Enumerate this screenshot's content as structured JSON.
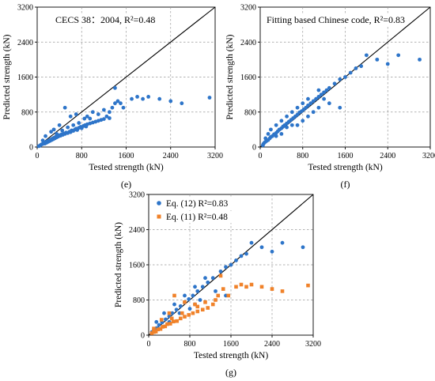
{
  "colors": {
    "blue": "#2e75c9",
    "orange": "#f0822a"
  },
  "chart_data": [
    {
      "type": "scatter",
      "panel_label": "(e)",
      "annotation": "CECS 38：2004, R²=0.48",
      "xlabel": "Tested strength (kN)",
      "ylabel": "Predicted strength (kN)",
      "xlim": [
        0,
        3200
      ],
      "ylim": [
        0,
        3200
      ],
      "xticks": [
        "0",
        "800",
        "1600",
        "2400",
        "3200"
      ],
      "yticks": [
        "0",
        "800",
        "1600",
        "2400",
        "3200"
      ],
      "grid": true,
      "reference_line": "y = x",
      "series": [
        {
          "color": "blue",
          "marker": "circle",
          "points": [
            [
              60,
              45
            ],
            [
              80,
              60
            ],
            [
              100,
              70
            ],
            [
              120,
              90
            ],
            [
              140,
              80
            ],
            [
              150,
              110
            ],
            [
              170,
              100
            ],
            [
              180,
              130
            ],
            [
              200,
              120
            ],
            [
              210,
              150
            ],
            [
              230,
              140
            ],
            [
              240,
              170
            ],
            [
              260,
              160
            ],
            [
              270,
              190
            ],
            [
              290,
              180
            ],
            [
              300,
              210
            ],
            [
              320,
              200
            ],
            [
              330,
              230
            ],
            [
              350,
              220
            ],
            [
              360,
              250
            ],
            [
              380,
              240
            ],
            [
              400,
              270
            ],
            [
              420,
              260
            ],
            [
              440,
              290
            ],
            [
              460,
              280
            ],
            [
              480,
              310
            ],
            [
              500,
              300
            ],
            [
              520,
              330
            ],
            [
              550,
              320
            ],
            [
              580,
              350
            ],
            [
              600,
              340
            ],
            [
              620,
              380
            ],
            [
              650,
              370
            ],
            [
              680,
              400
            ],
            [
              700,
              420
            ],
            [
              720,
              390
            ],
            [
              750,
              440
            ],
            [
              780,
              460
            ],
            [
              800,
              430
            ],
            [
              830,
              480
            ],
            [
              860,
              500
            ],
            [
              880,
              470
            ],
            [
              900,
              520
            ],
            [
              950,
              540
            ],
            [
              1000,
              560
            ],
            [
              1050,
              580
            ],
            [
              1100,
              600
            ],
            [
              1150,
              620
            ],
            [
              1200,
              640
            ],
            [
              1250,
              700
            ],
            [
              1300,
              660
            ],
            [
              1350,
              900
            ],
            [
              1400,
              1000
            ],
            [
              1450,
              1050
            ],
            [
              1500,
              1000
            ],
            [
              1550,
              900
            ],
            [
              1700,
              1100
            ],
            [
              1800,
              1150
            ],
            [
              1900,
              1100
            ],
            [
              2000,
              1150
            ],
            [
              2200,
              1100
            ],
            [
              2400,
              1050
            ],
            [
              2600,
              1000
            ],
            [
              3100,
              1130
            ],
            [
              1400,
              1350
            ],
            [
              500,
              900
            ],
            [
              600,
              700
            ],
            [
              700,
              750
            ],
            [
              400,
              500
            ],
            [
              300,
              400
            ],
            [
              250,
              350
            ],
            [
              150,
              250
            ],
            [
              100,
              150
            ],
            [
              50,
              30
            ],
            [
              30,
              20
            ],
            [
              900,
              700
            ],
            [
              1000,
              800
            ],
            [
              1100,
              750
            ],
            [
              1200,
              850
            ],
            [
              1300,
              800
            ],
            [
              850,
              650
            ],
            [
              950,
              650
            ],
            [
              750,
              550
            ],
            [
              650,
              500
            ],
            [
              550,
              450
            ],
            [
              450,
              380
            ],
            [
              350,
              300
            ]
          ]
        }
      ]
    },
    {
      "type": "scatter",
      "panel_label": "(f)",
      "annotation": "Fitting based Chinese code, R²=0.83",
      "xlabel": "Tested strength (kN)",
      "ylabel": "Predicted strength (kN)",
      "xlim": [
        0,
        3200
      ],
      "ylim": [
        0,
        3200
      ],
      "xticks": [
        "0",
        "800",
        "1600",
        "2400",
        "3200"
      ],
      "yticks": [
        "0",
        "800",
        "1600",
        "2400",
        "3200"
      ],
      "grid": true,
      "reference_line": "y = x",
      "series": [
        {
          "color": "blue",
          "marker": "circle",
          "points": [
            [
              60,
              70
            ],
            [
              80,
              100
            ],
            [
              100,
              120
            ],
            [
              120,
              140
            ],
            [
              150,
              160
            ],
            [
              180,
              200
            ],
            [
              200,
              230
            ],
            [
              230,
              250
            ],
            [
              260,
              290
            ],
            [
              300,
              320
            ],
            [
              330,
              360
            ],
            [
              360,
              400
            ],
            [
              400,
              430
            ],
            [
              430,
              470
            ],
            [
              460,
              500
            ],
            [
              500,
              540
            ],
            [
              540,
              580
            ],
            [
              580,
              620
            ],
            [
              620,
              660
            ],
            [
              660,
              700
            ],
            [
              700,
              740
            ],
            [
              740,
              790
            ],
            [
              780,
              820
            ],
            [
              820,
              860
            ],
            [
              860,
              900
            ],
            [
              900,
              950
            ],
            [
              950,
              1000
            ],
            [
              1000,
              1050
            ],
            [
              1050,
              1100
            ],
            [
              1100,
              1150
            ],
            [
              1150,
              1200
            ],
            [
              1200,
              1250
            ],
            [
              1250,
              1300
            ],
            [
              1300,
              1350
            ],
            [
              1400,
              1450
            ],
            [
              1500,
              1550
            ],
            [
              1600,
              1600
            ],
            [
              1700,
              1700
            ],
            [
              1800,
              1800
            ],
            [
              1900,
              1850
            ],
            [
              2000,
              2100
            ],
            [
              2200,
              2000
            ],
            [
              2400,
              1900
            ],
            [
              2600,
              2100
            ],
            [
              3000,
              2000
            ],
            [
              1500,
              900
            ],
            [
              1300,
              1000
            ],
            [
              1100,
              900
            ],
            [
              900,
              1100
            ],
            [
              800,
              1000
            ],
            [
              700,
              900
            ],
            [
              600,
              800
            ],
            [
              500,
              700
            ],
            [
              400,
              600
            ],
            [
              300,
              500
            ],
            [
              200,
              400
            ],
            [
              150,
              300
            ],
            [
              100,
              200
            ],
            [
              700,
              500
            ],
            [
              900,
              700
            ],
            [
              1100,
              1300
            ],
            [
              1200,
              1100
            ],
            [
              1000,
              800
            ],
            [
              800,
              600
            ],
            [
              600,
              500
            ],
            [
              400,
              300
            ],
            [
              50,
              40
            ],
            [
              300,
              250
            ],
            [
              500,
              450
            ]
          ]
        }
      ]
    },
    {
      "type": "scatter",
      "panel_label": "(g)",
      "xlabel": "Tested strength (kN)",
      "ylabel": "Predicted strength (kN)",
      "xlim": [
        0,
        3200
      ],
      "ylim": [
        0,
        3200
      ],
      "xticks": [
        "0",
        "800",
        "1600",
        "2400",
        "3200"
      ],
      "yticks": [
        "0",
        "800",
        "1600",
        "2400",
        "3200"
      ],
      "grid": true,
      "reference_line": "y = x",
      "legend_position": "top-left",
      "series": [
        {
          "name": "Eq. (12)  R²=0.83",
          "color": "blue",
          "marker": "circle",
          "points": [
            [
              60,
              70
            ],
            [
              100,
              120
            ],
            [
              150,
              160
            ],
            [
              200,
              230
            ],
            [
              260,
              290
            ],
            [
              330,
              360
            ],
            [
              400,
              430
            ],
            [
              460,
              500
            ],
            [
              540,
              580
            ],
            [
              620,
              660
            ],
            [
              700,
              740
            ],
            [
              780,
              820
            ],
            [
              860,
              900
            ],
            [
              950,
              1000
            ],
            [
              1050,
              1100
            ],
            [
              1150,
              1200
            ],
            [
              1250,
              1300
            ],
            [
              1400,
              1450
            ],
            [
              1500,
              1550
            ],
            [
              1600,
              1600
            ],
            [
              1700,
              1700
            ],
            [
              1800,
              1800
            ],
            [
              1900,
              1850
            ],
            [
              2000,
              2100
            ],
            [
              2200,
              2000
            ],
            [
              2400,
              1900
            ],
            [
              2600,
              2100
            ],
            [
              3000,
              2000
            ],
            [
              1500,
              900
            ],
            [
              1300,
              1000
            ],
            [
              900,
              1100
            ],
            [
              700,
              900
            ],
            [
              500,
              700
            ],
            [
              300,
              500
            ],
            [
              150,
              300
            ],
            [
              900,
              700
            ],
            [
              1100,
              1300
            ],
            [
              1000,
              800
            ],
            [
              800,
              600
            ],
            [
              600,
              500
            ],
            [
              400,
              300
            ]
          ]
        },
        {
          "name": "Eq. (11)  R²=0.48",
          "color": "orange",
          "marker": "square",
          "points": [
            [
              60,
              45
            ],
            [
              100,
              70
            ],
            [
              140,
              80
            ],
            [
              180,
              130
            ],
            [
              230,
              140
            ],
            [
              270,
              190
            ],
            [
              320,
              200
            ],
            [
              360,
              250
            ],
            [
              420,
              260
            ],
            [
              480,
              310
            ],
            [
              550,
              320
            ],
            [
              620,
              380
            ],
            [
              700,
              420
            ],
            [
              780,
              460
            ],
            [
              860,
              500
            ],
            [
              950,
              540
            ],
            [
              1050,
              580
            ],
            [
              1150,
              620
            ],
            [
              1250,
              700
            ],
            [
              1350,
              900
            ],
            [
              1450,
              1050
            ],
            [
              1550,
              900
            ],
            [
              1700,
              1100
            ],
            [
              1800,
              1150
            ],
            [
              1900,
              1100
            ],
            [
              2000,
              1150
            ],
            [
              2200,
              1100
            ],
            [
              2400,
              1050
            ],
            [
              2600,
              1000
            ],
            [
              3100,
              1130
            ],
            [
              1400,
              1350
            ],
            [
              500,
              900
            ],
            [
              700,
              750
            ],
            [
              400,
              500
            ],
            [
              250,
              350
            ],
            [
              100,
              150
            ],
            [
              900,
              700
            ],
            [
              1100,
              750
            ],
            [
              1300,
              800
            ],
            [
              950,
              650
            ],
            [
              650,
              500
            ],
            [
              450,
              380
            ]
          ]
        }
      ]
    }
  ]
}
